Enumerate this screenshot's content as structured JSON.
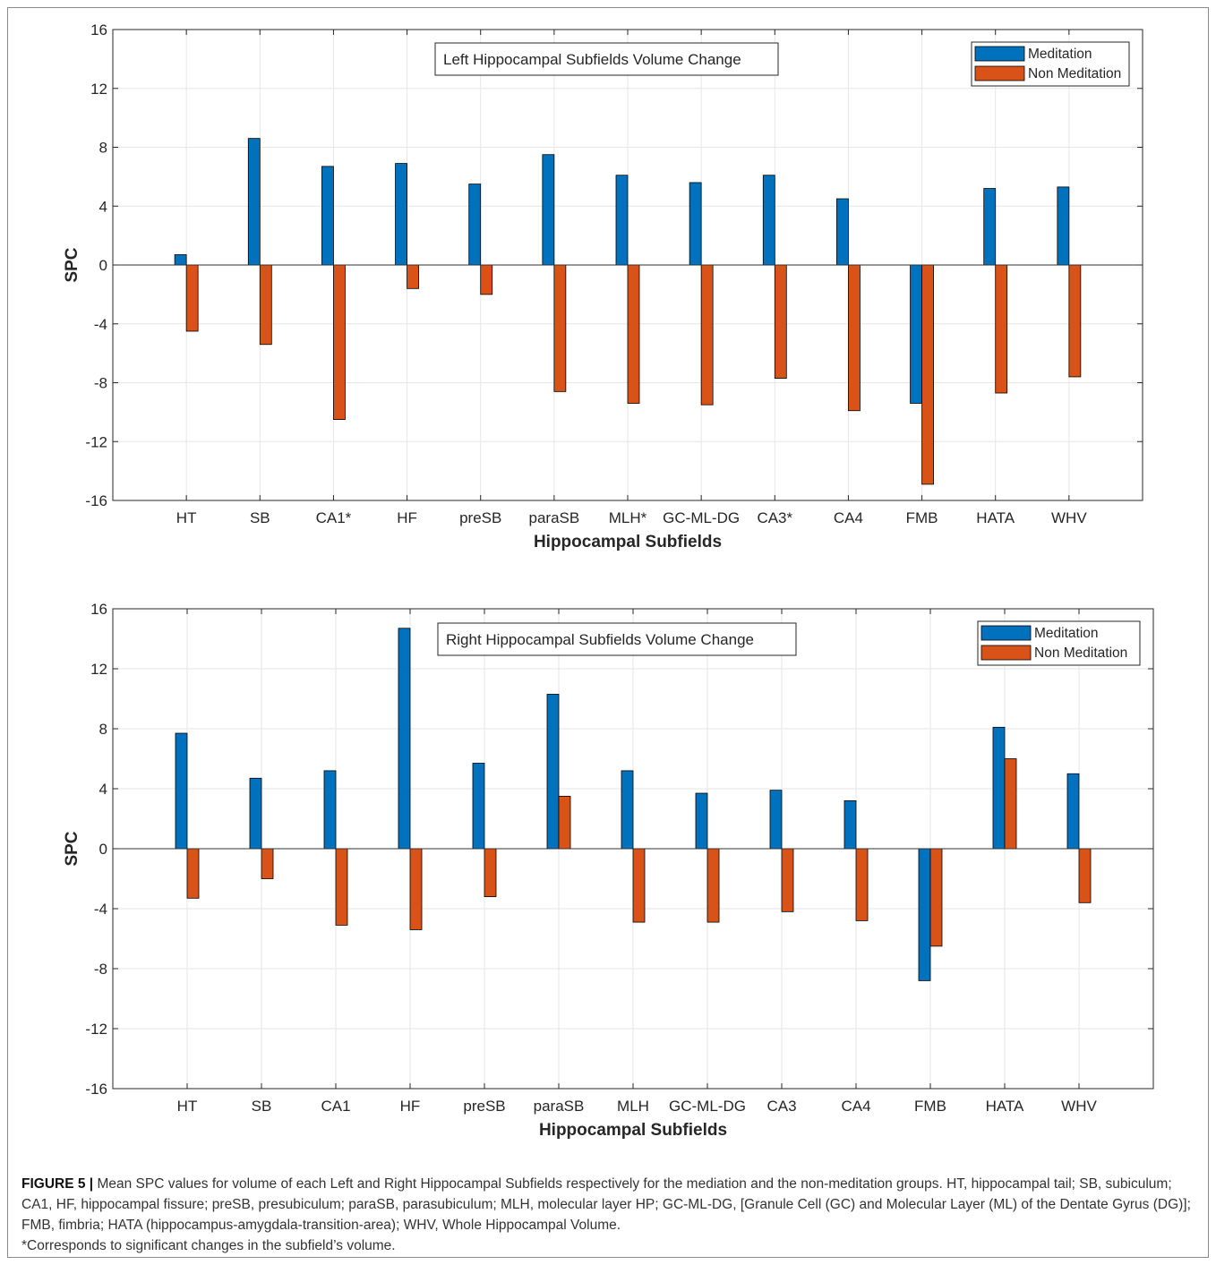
{
  "colors": {
    "meditation": "#0072bd",
    "non_meditation": "#d95319",
    "grid": "#e6e6e6",
    "axis": "#262626"
  },
  "chart_data": [
    {
      "type": "bar",
      "title": "Left Hippocampal Subfields Volume Change",
      "xlabel": "Hippocampal Subfields",
      "ylabel": "SPC",
      "ylim": [
        -16,
        16
      ],
      "yticks": [
        "16",
        "12",
        "8",
        "4",
        "0",
        "-4",
        "-8",
        "-12",
        "-16"
      ],
      "grid": true,
      "legend_position": "top-right",
      "categories": [
        "HT",
        "SB",
        "CA1*",
        "HF",
        "preSB",
        "paraSB",
        "MLH*",
        "GC-ML-DG",
        "CA3*",
        "CA4",
        "FMB",
        "HATA",
        "WHV"
      ],
      "series": [
        {
          "name": "Meditation",
          "values": [
            0.7,
            8.6,
            6.7,
            6.9,
            5.5,
            7.5,
            6.1,
            5.6,
            6.1,
            4.5,
            -9.4,
            5.2,
            5.3
          ]
        },
        {
          "name": "Non Meditation",
          "values": [
            -4.5,
            -5.4,
            -10.5,
            -1.6,
            -2.0,
            -8.6,
            -9.4,
            -9.5,
            -7.7,
            -9.9,
            -14.9,
            -8.7,
            -7.6
          ]
        }
      ]
    },
    {
      "type": "bar",
      "title": "Right Hippocampal Subfields Volume Change",
      "xlabel": "Hippocampal Subfields",
      "ylabel": "SPC",
      "ylim": [
        -16,
        16
      ],
      "yticks": [
        "16",
        "12",
        "8",
        "4",
        "0",
        "-4",
        "-8",
        "-12",
        "-16"
      ],
      "grid": true,
      "legend_position": "top-right",
      "categories": [
        "HT",
        "SB",
        "CA1",
        "HF",
        "preSB",
        "paraSB",
        "MLH",
        "GC-ML-DG",
        "CA3",
        "CA4",
        "FMB",
        "HATA",
        "WHV"
      ],
      "series": [
        {
          "name": "Meditation",
          "values": [
            7.7,
            4.7,
            5.2,
            14.7,
            5.7,
            10.3,
            5.2,
            3.7,
            3.9,
            3.2,
            -8.8,
            8.1,
            5.0
          ]
        },
        {
          "name": "Non Meditation",
          "values": [
            -3.3,
            -2.0,
            -5.1,
            -5.4,
            -3.2,
            3.5,
            -4.9,
            -4.9,
            -4.2,
            -4.8,
            -6.5,
            6.0,
            -3.6
          ]
        }
      ]
    }
  ],
  "caption": {
    "label": "FIGURE 5 |",
    "text": " Mean SPC values for volume of each Left and Right Hippocampal Subfields respectively for the mediation and the non-meditation groups. HT, hippocampal tail; SB, subiculum; CA1, HF, hippocampal fissure; preSB, presubiculum; paraSB, parasubiculum; MLH, molecular layer HP; GC-ML-DG, [Granule Cell (GC) and Molecular Layer (ML) of the Dentate Gyrus (DG)]; FMB, fimbria; HATA (hippocampus-amygdala-transition-area); WHV, Whole Hippocampal Volume.",
    "note": "*Corresponds to significant changes in the subfield’s volume."
  }
}
